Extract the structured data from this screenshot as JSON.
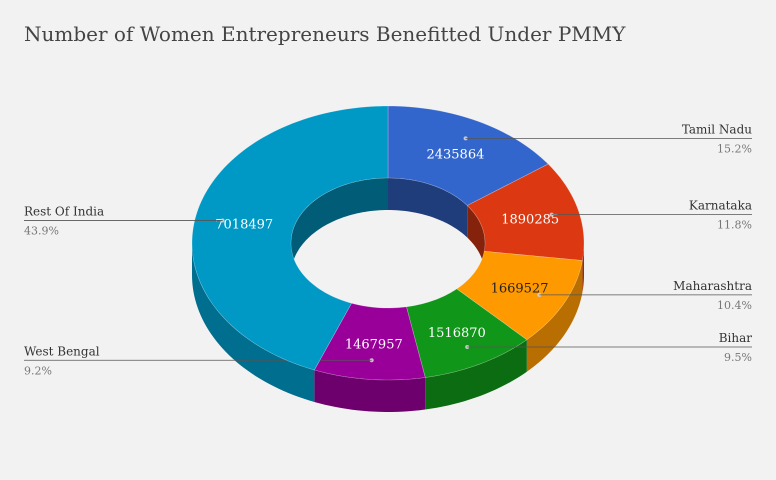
{
  "chart_data": {
    "type": "pie",
    "title": "Number of Women Entrepreneurs Benefitted Under PMMY",
    "slices": [
      {
        "label": "Tamil Nadu",
        "value": 2435864,
        "percent": "15.2%",
        "color": "#3366cc",
        "text_color": "#ffffff"
      },
      {
        "label": "Karnataka",
        "value": 1890285,
        "percent": "11.8%",
        "color": "#dc3912",
        "text_color": "#ffffff"
      },
      {
        "label": "Maharashtra",
        "value": 1669527,
        "percent": "10.4%",
        "color": "#ff9900",
        "text_color": "#222222"
      },
      {
        "label": "Bihar",
        "value": 1516870,
        "percent": "9.5%",
        "color": "#109618",
        "text_color": "#ffffff"
      },
      {
        "label": "West Bengal",
        "value": 1467957,
        "percent": "9.2%",
        "color": "#990099",
        "text_color": "#ffffff"
      },
      {
        "label": "Rest Of India",
        "value": 7018497,
        "percent": "43.9%",
        "color": "#0099c6",
        "text_color": "#ffffff"
      }
    ]
  }
}
